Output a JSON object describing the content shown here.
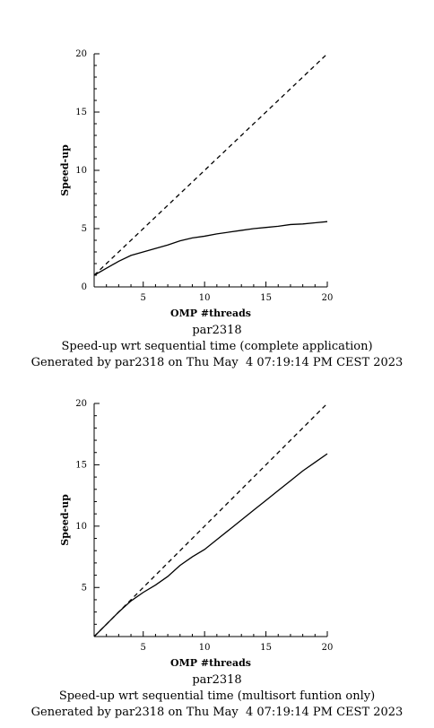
{
  "chart_data": [
    {
      "type": "line",
      "title": "Speed-up wrt sequential time (complete application)",
      "subtitle": "par2318",
      "footer": "Generated by par2318 on Thu May  4 07:19:14 PM CEST 2023",
      "xlabel": "OMP #threads",
      "ylabel": "Speed-up",
      "xlim": [
        1,
        20
      ],
      "ylim": [
        0,
        20
      ],
      "x_ticks": [
        5,
        10,
        15,
        20
      ],
      "y_ticks": [
        0,
        5,
        10,
        15,
        20
      ],
      "grid": false,
      "series": [
        {
          "style": "dashed",
          "x": [
            1,
            20
          ],
          "y": [
            1,
            20
          ]
        },
        {
          "style": "solid",
          "x": [
            1,
            2,
            3,
            4,
            5,
            6,
            7,
            8,
            9,
            10,
            11,
            12,
            13,
            14,
            15,
            16,
            17,
            18,
            19,
            20
          ],
          "y": [
            1.0,
            1.6,
            2.2,
            2.7,
            3.0,
            3.3,
            3.6,
            3.95,
            4.2,
            4.35,
            4.55,
            4.7,
            4.85,
            5.0,
            5.1,
            5.2,
            5.35,
            5.4,
            5.5,
            5.6
          ]
        }
      ]
    },
    {
      "type": "line",
      "title": "Speed-up wrt sequential time (multisort funtion only)",
      "subtitle": "par2318",
      "footer": "Generated by par2318 on Thu May  4 07:19:14 PM CEST 2023",
      "xlabel": "OMP #threads",
      "ylabel": "Speed-up",
      "xlim": [
        1,
        20
      ],
      "ylim": [
        1,
        20
      ],
      "x_ticks": [
        5,
        10,
        15,
        20
      ],
      "y_ticks": [
        5,
        10,
        15,
        20
      ],
      "grid": false,
      "series": [
        {
          "style": "dashed",
          "x": [
            1,
            20
          ],
          "y": [
            1,
            20
          ]
        },
        {
          "style": "solid",
          "x": [
            1,
            2,
            3,
            4,
            5,
            6,
            7,
            8,
            9,
            10,
            11,
            12,
            13,
            14,
            15,
            16,
            17,
            18,
            19,
            20
          ],
          "y": [
            1.0,
            2.0,
            3.0,
            3.9,
            4.6,
            5.2,
            5.9,
            6.8,
            7.5,
            8.1,
            8.9,
            9.7,
            10.5,
            11.3,
            12.1,
            12.9,
            13.7,
            14.5,
            15.2,
            15.9
          ]
        }
      ]
    }
  ]
}
